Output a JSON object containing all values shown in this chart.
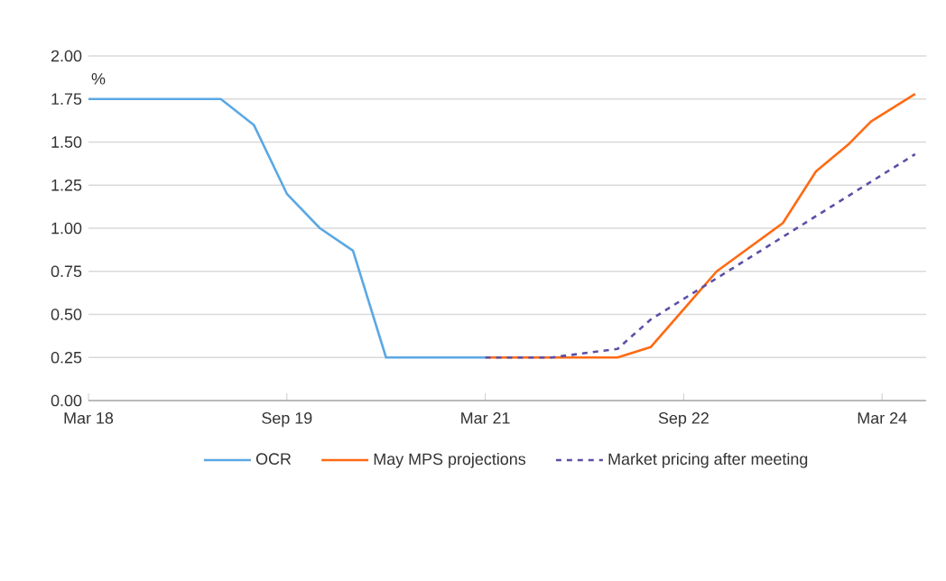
{
  "chart_data": {
    "type": "line",
    "ylabel": "%",
    "x": [
      "2018-03",
      "2019-03",
      "2019-06",
      "2019-09",
      "2019-12",
      "2020-03",
      "2020-06",
      "2021-03"
    ],
    "series": [
      {
        "name": "OCR",
        "color": "#5ba8e4",
        "values": [
          1.75,
          1.75,
          1.6,
          1.2,
          1.0,
          0.87,
          0.25,
          0.25
        ]
      },
      {
        "name": "May MPS projections",
        "color": "#ff6a13",
        "x": [
          "2021-03",
          "2022-03",
          "2022-06",
          "2022-12",
          "2023-06",
          "2023-09",
          "2023-12",
          "2024-02",
          "2024-06"
        ],
        "values": [
          0.25,
          0.25,
          0.31,
          0.75,
          1.03,
          1.33,
          1.49,
          1.62,
          1.78
        ]
      },
      {
        "name": "Market pricing after meeting",
        "color": "#5a50a8",
        "line_style": "dashed",
        "x": [
          "2021-03",
          "2021-09",
          "2022-03",
          "2022-06",
          "2024-06"
        ],
        "values": [
          0.25,
          0.25,
          0.3,
          0.47,
          1.43
        ]
      }
    ],
    "xlim": [
      "2018-03",
      "2024-07"
    ],
    "xticks": [
      {
        "value": "2018-03",
        "label": "Mar 18"
      },
      {
        "value": "2019-09",
        "label": "Sep 19"
      },
      {
        "value": "2021-03",
        "label": "Mar 21"
      },
      {
        "value": "2022-09",
        "label": "Sep 22"
      },
      {
        "value": "2024-03",
        "label": "Mar 24"
      }
    ],
    "ylim": [
      0,
      2
    ],
    "yticks": [
      {
        "value": 0,
        "label": "0.00"
      },
      {
        "value": 0.25,
        "label": "0.25"
      },
      {
        "value": 0.5,
        "label": "0.50"
      },
      {
        "value": 0.75,
        "label": "0.75"
      },
      {
        "value": 1,
        "label": "1.00"
      },
      {
        "value": 1.25,
        "label": "1.25"
      },
      {
        "value": 1.5,
        "label": "1.50"
      },
      {
        "value": 1.75,
        "label": "1.75"
      },
      {
        "value": 2,
        "label": "2.00"
      }
    ],
    "grid": "y",
    "legend": "bottom",
    "line_style": "solid",
    "marker": "none"
  }
}
